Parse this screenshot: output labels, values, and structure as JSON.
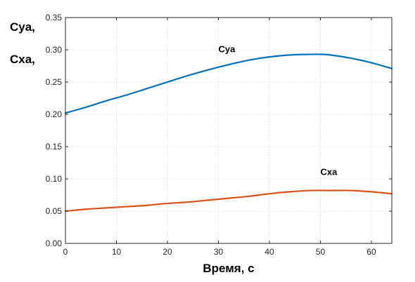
{
  "chart_data": {
    "type": "line",
    "title": "",
    "xlabel": "Время, с",
    "ylabel_lines": [
      "Cya,",
      "Cxa,"
    ],
    "xlim": [
      0,
      64
    ],
    "ylim": [
      0,
      0.35
    ],
    "xticks": [
      0,
      10,
      20,
      30,
      40,
      50,
      60
    ],
    "yticks": [
      0,
      0.05,
      0.1,
      0.15,
      0.2,
      0.25,
      0.3,
      0.35
    ],
    "xtick_labels": [
      "0",
      "10",
      "20",
      "30",
      "40",
      "50",
      "60"
    ],
    "ytick_labels": [
      "0.00",
      "0.05",
      "0.10",
      "0.15",
      "0.20",
      "0.25",
      "0.30",
      "0.35"
    ],
    "grid": true,
    "series": [
      {
        "name": "Cya",
        "color": "#0072BD",
        "label_at": [
          30,
          0.296
        ],
        "x": [
          0,
          4,
          8,
          12,
          16,
          20,
          24,
          28,
          32,
          36,
          40,
          44,
          48,
          50,
          52,
          56,
          60,
          64
        ],
        "y": [
          0.202,
          0.211,
          0.221,
          0.23,
          0.24,
          0.25,
          0.26,
          0.269,
          0.277,
          0.284,
          0.289,
          0.292,
          0.293,
          0.293,
          0.292,
          0.287,
          0.28,
          0.271
        ]
      },
      {
        "name": "Cxa",
        "color": "#D95319",
        "label_at": [
          50,
          0.106
        ],
        "x": [
          0,
          4,
          8,
          12,
          16,
          20,
          24,
          28,
          32,
          36,
          40,
          44,
          48,
          52,
          56,
          60,
          64
        ],
        "y": [
          0.05,
          0.053,
          0.055,
          0.057,
          0.059,
          0.062,
          0.064,
          0.067,
          0.07,
          0.073,
          0.077,
          0.08,
          0.082,
          0.082,
          0.082,
          0.08,
          0.077
        ]
      }
    ]
  }
}
